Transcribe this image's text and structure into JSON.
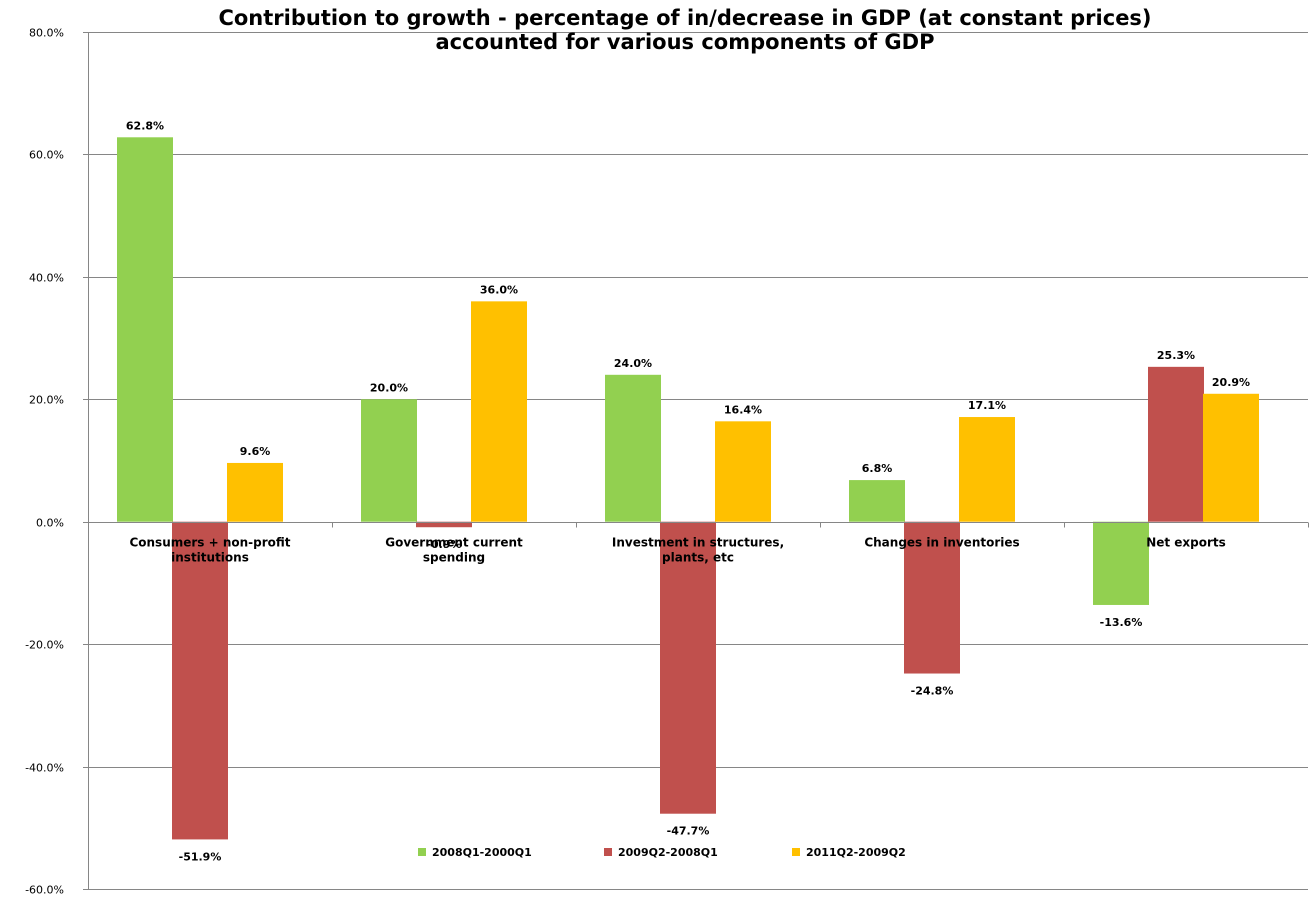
{
  "chart_data": {
    "type": "bar",
    "title": "Contribution to growth - percentage of in/decrease in GDP (at constant prices)",
    "subtitle": "accounted for various components of GDP",
    "categories": [
      [
        "Consumers + non-profit",
        "institutions"
      ],
      [
        "Government current",
        "spending"
      ],
      [
        "Investment in structures,",
        "plants, etc"
      ],
      [
        "Changes in inventories"
      ],
      [
        "Net exports"
      ]
    ],
    "series": [
      {
        "name": "2008Q1-2000Q1",
        "color": "#92d050",
        "values": [
          62.8,
          20.0,
          24.0,
          6.8,
          -13.6
        ],
        "labels": [
          "62.8%",
          "20.0%",
          "24.0%",
          "6.8%",
          "-13.6%"
        ]
      },
      {
        "name": "2009Q2-2008Q1",
        "color": "#c0504d",
        "values": [
          -51.9,
          -0.9,
          -47.7,
          -24.8,
          25.3
        ],
        "labels": [
          "-51.9%",
          "-0.9%",
          "-47.7%",
          "-24.8%",
          "25.3%"
        ]
      },
      {
        "name": "2011Q2-2009Q2",
        "color": "#ffc000",
        "values": [
          9.6,
          36.0,
          16.4,
          17.1,
          20.9
        ],
        "labels": [
          "9.6%",
          "36.0%",
          "16.4%",
          "17.1%",
          "20.9%"
        ]
      }
    ],
    "ylim": [
      -60,
      80
    ],
    "yticks": [
      -60,
      -40,
      -20,
      0,
      20,
      40,
      60,
      80
    ],
    "ytick_labels": [
      "-60.0%",
      "-40.0%",
      "-20.0%",
      "0.0%",
      "20.0%",
      "40.0%",
      "60.0%",
      "80.0%"
    ],
    "grid": true,
    "legend_position": "bottom"
  }
}
